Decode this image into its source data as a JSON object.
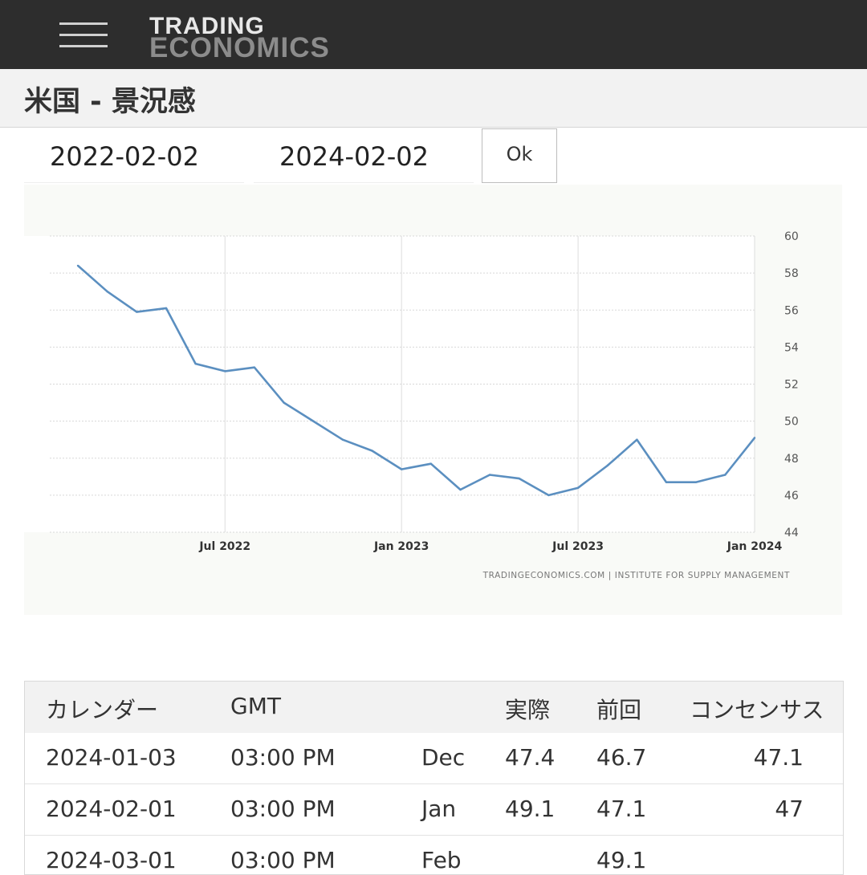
{
  "header": {
    "logo_line1": "TRADING",
    "logo_line2": "ECONOMICS",
    "menu_icon": "hamburger-menu-icon"
  },
  "page": {
    "title": "米国 - 景況感"
  },
  "date_range": {
    "start": "2022-02-02",
    "end": "2024-02-02",
    "ok_label": "Ok"
  },
  "chart_data": {
    "type": "line",
    "series": [
      {
        "values": [
          {
            "x": "2022-02",
            "y": 58.4
          },
          {
            "x": "2022-03",
            "y": 57.0
          },
          {
            "x": "2022-04",
            "y": 55.9
          },
          {
            "x": "2022-05",
            "y": 56.1
          },
          {
            "x": "2022-06",
            "y": 53.1
          },
          {
            "x": "2022-07",
            "y": 52.7
          },
          {
            "x": "2022-08",
            "y": 52.9
          },
          {
            "x": "2022-09",
            "y": 51.0
          },
          {
            "x": "2022-10",
            "y": 50.0
          },
          {
            "x": "2022-11",
            "y": 49.0
          },
          {
            "x": "2022-12",
            "y": 48.4
          },
          {
            "x": "2023-01",
            "y": 47.4
          },
          {
            "x": "2023-02",
            "y": 47.7
          },
          {
            "x": "2023-03",
            "y": 46.3
          },
          {
            "x": "2023-04",
            "y": 47.1
          },
          {
            "x": "2023-05",
            "y": 46.9
          },
          {
            "x": "2023-06",
            "y": 46.0
          },
          {
            "x": "2023-07",
            "y": 46.4
          },
          {
            "x": "2023-08",
            "y": 47.6
          },
          {
            "x": "2023-09",
            "y": 49.0
          },
          {
            "x": "2023-10",
            "y": 46.7
          },
          {
            "x": "2023-11",
            "y": 46.7
          },
          {
            "x": "2023-12",
            "y": 47.1
          },
          {
            "x": "2024-01",
            "y": 49.1
          }
        ]
      }
    ],
    "x_ticks": [
      "Jul 2022",
      "Jan 2023",
      "Jul 2023",
      "Jan 2024"
    ],
    "y_ticks": [
      60,
      58,
      56,
      54,
      52,
      50,
      48,
      46,
      44
    ],
    "ylim": [
      44,
      60
    ],
    "grid": true,
    "line_color": "#5b8fc0",
    "source": "TRADINGECONOMICS.COM  |  INSTITUTE FOR SUPPLY MANAGEMENT"
  },
  "table": {
    "headers": {
      "calendar": "カレンダー",
      "gmt": "GMT",
      "actual": "実際",
      "previous": "前回",
      "consensus": "コンセンサス"
    },
    "rows": [
      {
        "date": "2024-01-03",
        "time": "03:00 PM",
        "ref": "Dec",
        "actual": "47.4",
        "previous": "46.7",
        "consensus": "47.1"
      },
      {
        "date": "2024-02-01",
        "time": "03:00 PM",
        "ref": "Jan",
        "actual": "49.1",
        "previous": "47.1",
        "consensus": "47"
      },
      {
        "date": "2024-03-01",
        "time": "03:00 PM",
        "ref": "Feb",
        "actual": "",
        "previous": "49.1",
        "consensus": ""
      }
    ]
  }
}
